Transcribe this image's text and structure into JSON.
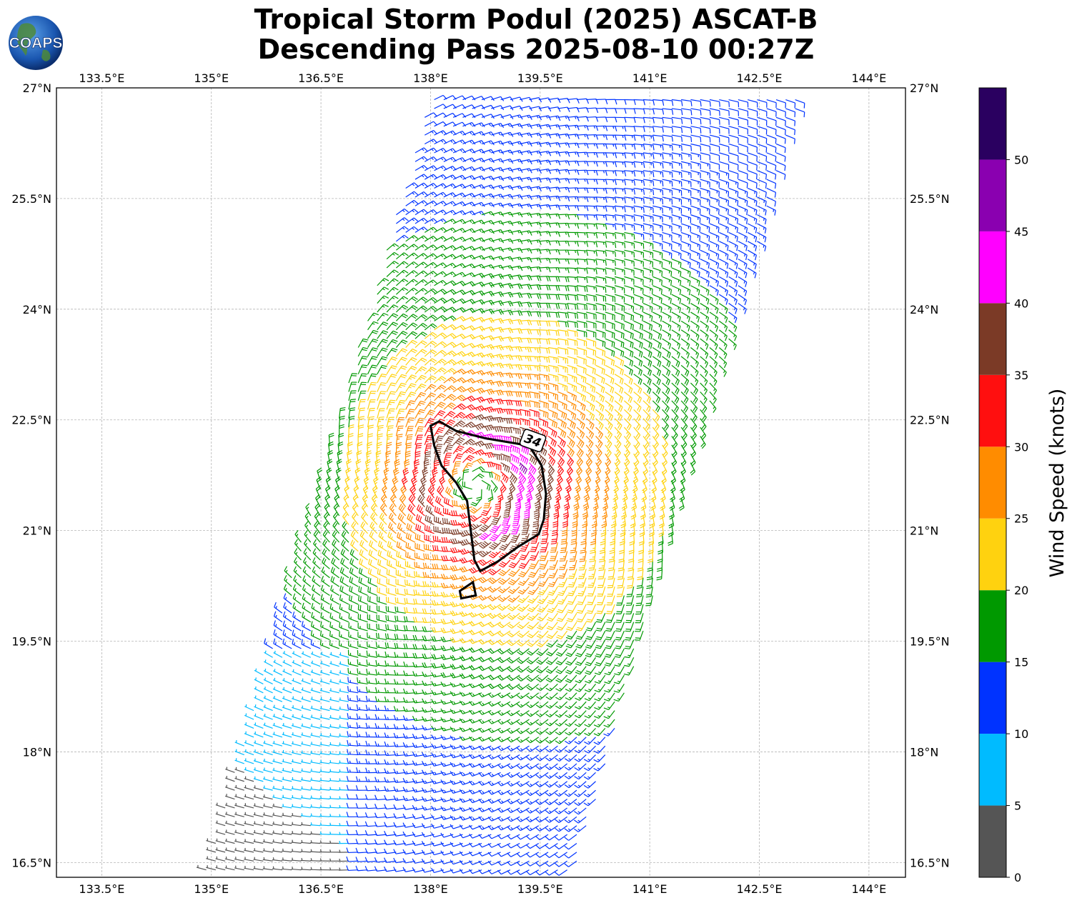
{
  "title": {
    "line1": "Tropical Storm Podul (2025) ASCAT-B",
    "line2": "Descending Pass 2025-08-10 00:27Z"
  },
  "logo": {
    "text": "COAPS"
  },
  "map": {
    "lon_ticks": [
      "133.5°E",
      "135°E",
      "136.5°E",
      "138°E",
      "139.5°E",
      "141°E",
      "142.5°E",
      "144°E"
    ],
    "lon_values": [
      133.5,
      135,
      136.5,
      138,
      139.5,
      141,
      142.5,
      144
    ],
    "lat_ticks": [
      "27°N",
      "25.5°N",
      "24°N",
      "22.5°N",
      "21°N",
      "19.5°N",
      "18°N",
      "16.5°N"
    ],
    "lat_values": [
      27,
      25.5,
      24,
      22.5,
      21,
      19.5,
      18,
      16.5
    ],
    "lon_range": [
      132.88,
      144.5
    ],
    "lat_range": [
      16.3,
      27
    ],
    "gridlines": true,
    "storm_center": {
      "lon": 138.6,
      "lat": 21.6
    },
    "contour_label": "34",
    "contour_value_knots": 34
  },
  "colorbar": {
    "title": "Wind Speed (knots)",
    "ticks": [
      "0",
      "5",
      "10",
      "15",
      "20",
      "25",
      "30",
      "35",
      "40",
      "45",
      "50"
    ],
    "bins": [
      {
        "min": 0,
        "max": 5,
        "color": "#555555"
      },
      {
        "min": 5,
        "max": 10,
        "color": "#00bbff"
      },
      {
        "min": 10,
        "max": 15,
        "color": "#0033ff"
      },
      {
        "min": 15,
        "max": 20,
        "color": "#009900"
      },
      {
        "min": 20,
        "max": 25,
        "color": "#ffd20f"
      },
      {
        "min": 25,
        "max": 30,
        "color": "#ff8c00"
      },
      {
        "min": 30,
        "max": 35,
        "color": "#ff0f0f"
      },
      {
        "min": 35,
        "max": 40,
        "color": "#7b3a26"
      },
      {
        "min": 40,
        "max": 45,
        "color": "#ff00ff"
      },
      {
        "min": 45,
        "max": 50,
        "color": "#8a00b0"
      },
      {
        "min": 50,
        "max": 55,
        "color": "#2a0060"
      }
    ]
  }
}
